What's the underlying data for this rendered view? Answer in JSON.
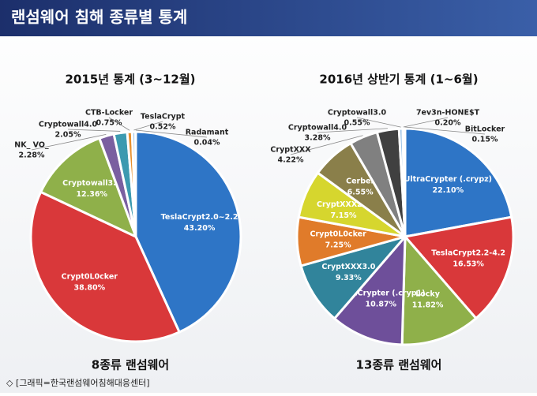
{
  "header": {
    "title": "랜섬웨어 침해 종류별 통계"
  },
  "caption": "◇ [그래픽=한국랜섬웨어침해대응센터]",
  "chart_data": [
    {
      "type": "pie",
      "title": "2015년 통계 (3~12월)",
      "subtitle": "8종류 랜섬웨어",
      "categories": [
        "TeslaCrypt2.0~2.2",
        "Crypt0L0cker",
        "Cryptowall3.0",
        "NK_ VO_",
        "Cryptowall4.0",
        "CTB-Locker",
        "TeslaCrypt",
        "Radamant"
      ],
      "values": [
        43.2,
        38.8,
        12.36,
        2.28,
        2.05,
        0.75,
        0.52,
        0.04
      ],
      "value_labels": [
        "43.20%",
        "38.80%",
        "12.36%",
        "2.28%",
        "2.05%",
        "0.75%",
        "0.52%",
        "0.04%"
      ],
      "colors": [
        "#2e75c6",
        "#d9383a",
        "#8fb04a",
        "#7a5fa0",
        "#3c9ab0",
        "#e7902e",
        "#9dc3e6",
        "#e6a0a0"
      ]
    },
    {
      "type": "pie",
      "title": "2016년 상반기 통계 (1~6월)",
      "subtitle": "13종류 랜섬웨어",
      "categories": [
        "UltraCrypter (.crypz)",
        "TeslaCrypt2.2-4.2",
        "Locky",
        "UltraCrypter (.cryp1)",
        "CryptXXX3.0",
        "Crypt0L0cker",
        "CryptXXX2.0",
        "Cerber",
        "CryptXXX",
        "Cryptowall4.0",
        "Cryptowall3.0",
        "7ev3n-HONE$T",
        "BitLocker"
      ],
      "values": [
        22.1,
        16.53,
        11.82,
        10.87,
        9.33,
        7.25,
        7.15,
        6.55,
        4.22,
        3.28,
        0.55,
        0.2,
        0.15
      ],
      "value_labels": [
        "22.10%",
        "16.53%",
        "11.82%",
        "10.87%",
        "9.33%",
        "7.25%",
        "7.15%",
        "6.55%",
        "4.22%",
        "3.28%",
        "0.55%",
        "0.20%",
        "0.15%"
      ],
      "colors": [
        "#2e75c6",
        "#d9383a",
        "#8fb04a",
        "#6e4f9a",
        "#31849b",
        "#e07b2a",
        "#d6d62e",
        "#8a7f4a",
        "#808080",
        "#404040",
        "#9dc3e6",
        "#e6a0a0",
        "#5b8fd0"
      ]
    }
  ]
}
